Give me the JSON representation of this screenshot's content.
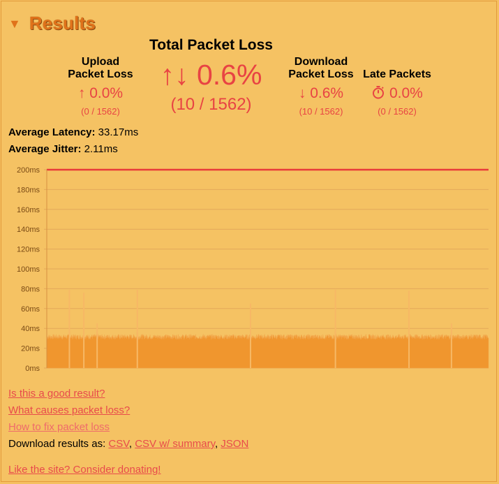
{
  "header": {
    "title": "Results",
    "toggle_glyph": "▼"
  },
  "upload": {
    "label_line1": "Upload",
    "label_line2": "Packet Loss",
    "arrow": "↑",
    "value": "0.0%",
    "fraction": "(0 / 1562)"
  },
  "total": {
    "title": "Total Packet Loss",
    "arrows": "↑↓",
    "value": "0.6%",
    "fraction": "(10 / 1562)"
  },
  "download": {
    "label_line1": "Download",
    "label_line2": "Packet Loss",
    "arrow": "↓",
    "value": "0.6%",
    "fraction": "(10 / 1562)"
  },
  "late": {
    "label": "Late Packets",
    "icon": "stopwatch-icon",
    "value": "0.0%",
    "fraction": "(0 / 1562)"
  },
  "latency": {
    "label": "Average Latency:",
    "value": "33.17ms"
  },
  "jitter": {
    "label": "Average Jitter:",
    "value": "2.11ms"
  },
  "chart_data": {
    "type": "area",
    "y_tick_labels": [
      "200ms",
      "180ms",
      "160ms",
      "140ms",
      "120ms",
      "100ms",
      "80ms",
      "60ms",
      "40ms",
      "20ms",
      "0ms"
    ],
    "ylim": [
      0,
      200
    ],
    "grid": true,
    "threshold_line": 200,
    "baseline_latency": 32,
    "n_samples": 1562,
    "spikes": [
      {
        "sample": 80,
        "value": 79
      },
      {
        "sample": 131,
        "value": 76
      },
      {
        "sample": 178,
        "value": 45
      },
      {
        "sample": 320,
        "value": 79
      },
      {
        "sample": 720,
        "value": 65
      },
      {
        "sample": 1020,
        "value": 79
      },
      {
        "sample": 1280,
        "value": 78
      },
      {
        "sample": 1430,
        "value": 45
      }
    ],
    "colors": {
      "fill": "#f0962e",
      "threshold": "#e83a3a",
      "grid": "#e3a85a"
    }
  },
  "links": {
    "good_result": "Is this a good result?",
    "causes": "What causes packet loss?",
    "fix": "How to fix packet loss",
    "download_prefix": "Download results as: ",
    "csv": "CSV",
    "csv_summary": "CSV w/ summary",
    "json": "JSON",
    "donate": "Like the site? Consider donating!"
  }
}
